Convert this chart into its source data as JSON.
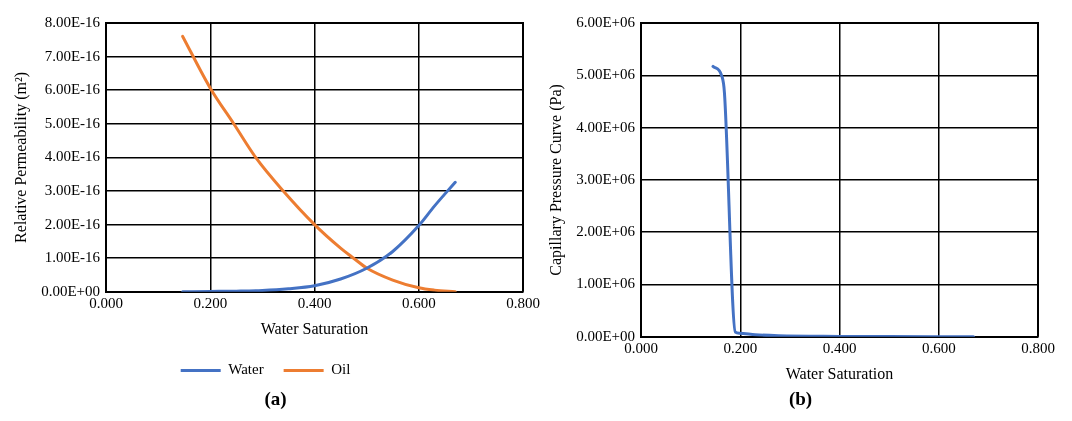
{
  "chart_data": [
    {
      "type": "line",
      "xlabel": "Water Saturation",
      "ylabel": "Relative Permeability (m²)",
      "annotations": [
        "(a)"
      ],
      "legend": "bottom",
      "grid": true,
      "marker": "none",
      "xlim": [
        0,
        0.8
      ],
      "xticks": [
        {
          "value": 0,
          "label": "0.000"
        },
        {
          "value": 0.2,
          "label": "0.200"
        },
        {
          "value": 0.4,
          "label": "0.400"
        },
        {
          "value": 0.6,
          "label": "0.600"
        },
        {
          "value": 0.8,
          "label": "0.800"
        }
      ],
      "ylim": [
        0,
        8e-16
      ],
      "yticks": [
        {
          "value": 0,
          "label": "0.00E+00"
        },
        {
          "value": 1e-16,
          "label": "1.00E-16"
        },
        {
          "value": 2e-16,
          "label": "2.00E-16"
        },
        {
          "value": 3e-16,
          "label": "3.00E-16"
        },
        {
          "value": 4e-16,
          "label": "4.00E-16"
        },
        {
          "value": 5e-16,
          "label": "5.00E-16"
        },
        {
          "value": 6e-16,
          "label": "6.00E-16"
        },
        {
          "value": 7e-16,
          "label": "7.00E-16"
        },
        {
          "value": 8e-16,
          "label": "8.00E-16"
        }
      ],
      "series": [
        {
          "name": "Water",
          "color": "#4472c4",
          "x": [
            0.147,
            0.2,
            0.25,
            0.3,
            0.35,
            0.4,
            0.45,
            0.5,
            0.55,
            0.6,
            0.63,
            0.67
          ],
          "values": [
            0,
            1e-18,
            2e-18,
            4e-18,
            9e-18,
            1.8e-17,
            3.8e-17,
            7e-17,
            1.2e-16,
            1.97e-16,
            2.55e-16,
            3.26e-16
          ]
        },
        {
          "name": "Oil",
          "color": "#ed7d31",
          "x": [
            0.147,
            0.2,
            0.245,
            0.287,
            0.34,
            0.4,
            0.45,
            0.475,
            0.5,
            0.55,
            0.6,
            0.63,
            0.67
          ],
          "values": [
            7.6e-16,
            6.06e-16,
            5e-16,
            4e-16,
            3e-16,
            2e-16,
            1.3e-16,
            1e-16,
            7.1e-17,
            3.5e-17,
            1.2e-17,
            5e-18,
            0
          ]
        }
      ]
    },
    {
      "type": "line",
      "xlabel": "Water Saturation",
      "ylabel": "Capillary Pressure Curve (Pa)",
      "annotations": [
        "(b)"
      ],
      "grid": true,
      "marker": "none",
      "xlim": [
        0,
        0.8
      ],
      "xticks": [
        {
          "value": 0,
          "label": "0.000"
        },
        {
          "value": 0.2,
          "label": "0.200"
        },
        {
          "value": 0.4,
          "label": "0.400"
        },
        {
          "value": 0.6,
          "label": "0.600"
        },
        {
          "value": 0.8,
          "label": "0.800"
        }
      ],
      "ylim": [
        0,
        6000000
      ],
      "yticks": [
        {
          "value": 0,
          "label": "0.00E+00"
        },
        {
          "value": 1000000,
          "label": "1.00E+06"
        },
        {
          "value": 2000000,
          "label": "2.00E+06"
        },
        {
          "value": 3000000,
          "label": "3.00E+06"
        },
        {
          "value": 4000000,
          "label": "4.00E+06"
        },
        {
          "value": 5000000,
          "label": "5.00E+06"
        },
        {
          "value": 6000000,
          "label": "6.00E+06"
        }
      ],
      "series": [
        {
          "color": "#4472c4",
          "x": [
            0.145,
            0.163,
            0.168,
            0.19,
            0.198,
            0.23,
            0.277,
            0.4,
            0.5,
            0.67
          ],
          "values": [
            5170000,
            4980000,
            4670000,
            90000,
            70000,
            40000,
            20000,
            8000,
            4000,
            0
          ]
        }
      ]
    }
  ]
}
